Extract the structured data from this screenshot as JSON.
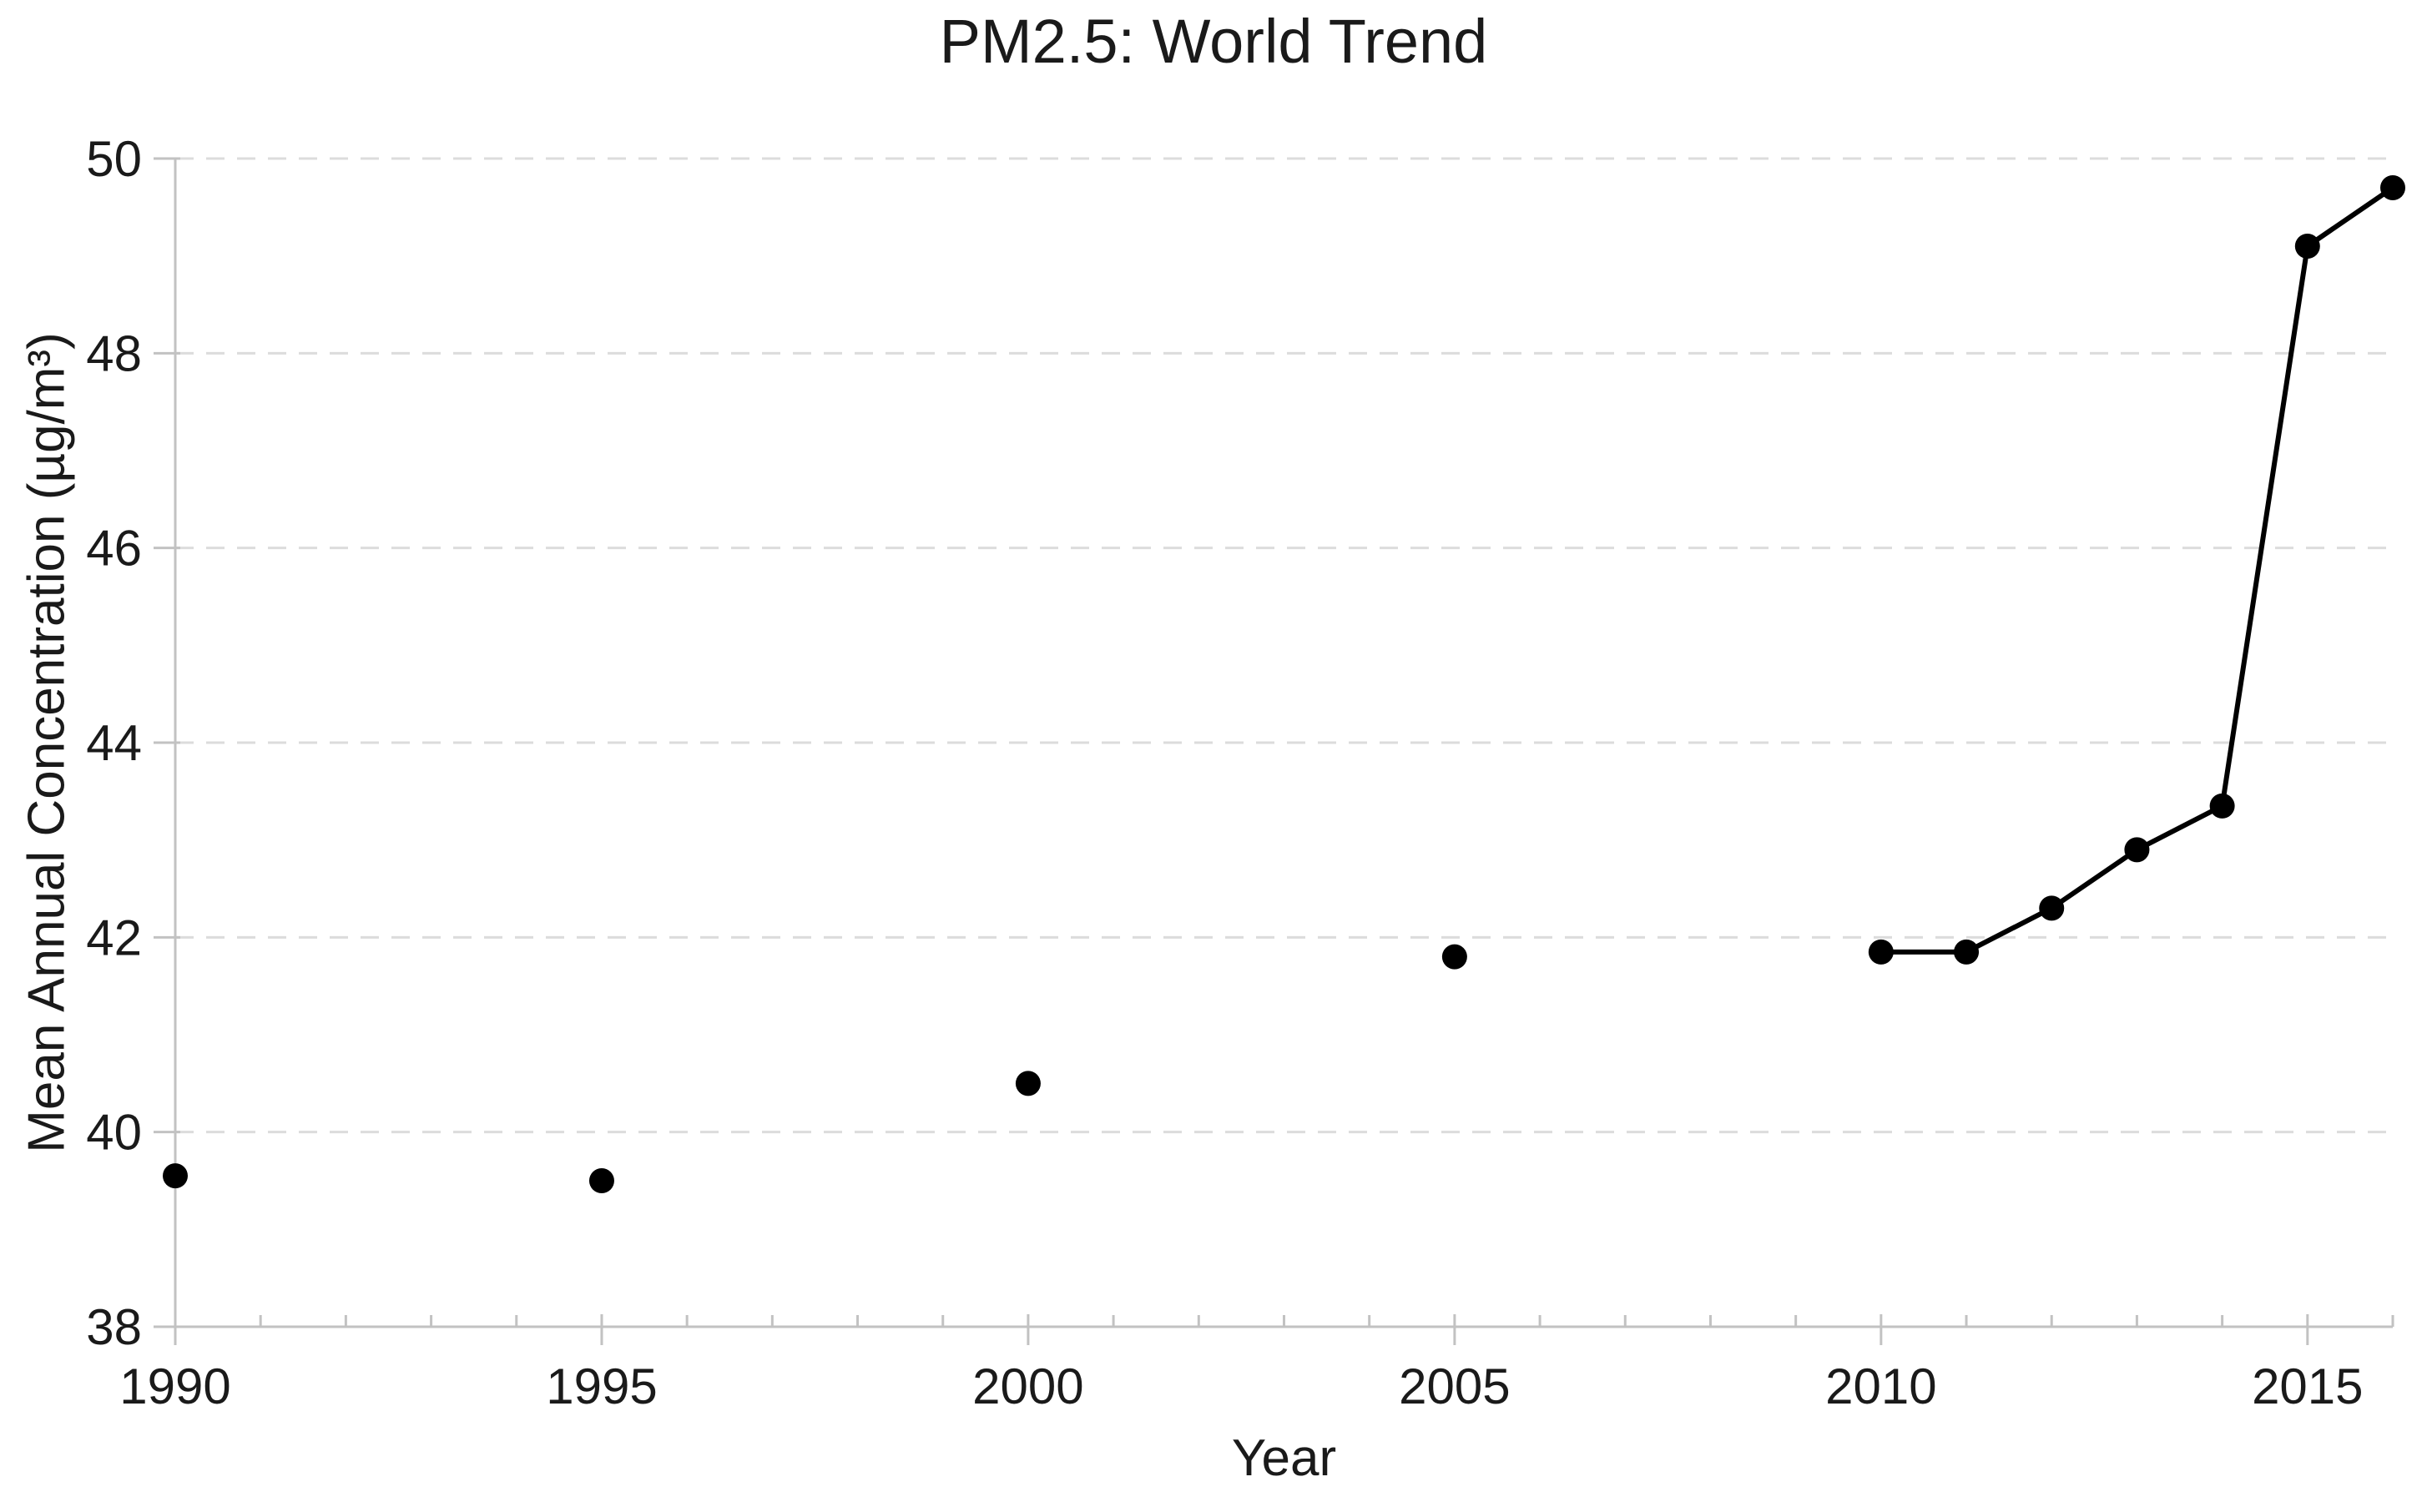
{
  "chart_data": {
    "type": "line",
    "title": "PM2.5: World Trend",
    "xlabel": "Year",
    "ylabel": "Mean Annual Concentration (µg/m³)",
    "x": [
      1990,
      1995,
      2000,
      2005,
      2010,
      2011,
      2012,
      2013,
      2014,
      2015,
      2016
    ],
    "values": [
      39.55,
      39.5,
      40.5,
      41.8,
      41.85,
      41.85,
      42.3,
      42.9,
      43.35,
      49.1,
      49.7
    ],
    "xlim": [
      1990,
      2016
    ],
    "ylim": [
      38,
      50
    ],
    "xticks": [
      1990,
      1995,
      2000,
      2005,
      2010,
      2015
    ],
    "yticks": [
      38,
      40,
      42,
      44,
      46,
      48,
      50
    ],
    "xminorticks": [
      1991,
      1992,
      1993,
      1994,
      1996,
      1997,
      1998,
      1999,
      2001,
      2002,
      2003,
      2004,
      2006,
      2007,
      2008,
      2009,
      2011,
      2012,
      2013,
      2014,
      2016
    ],
    "line_segments": [
      [
        4,
        5,
        6,
        7,
        8,
        9,
        10
      ]
    ],
    "marker": "filled-circle",
    "grid": "horizontal-dashed",
    "legend": "none",
    "colors": {
      "series": "#000000",
      "axis": "#c2c2c2",
      "grid": "#dcdcdc",
      "text": "#1a1a1a",
      "background": "#ffffff"
    }
  }
}
